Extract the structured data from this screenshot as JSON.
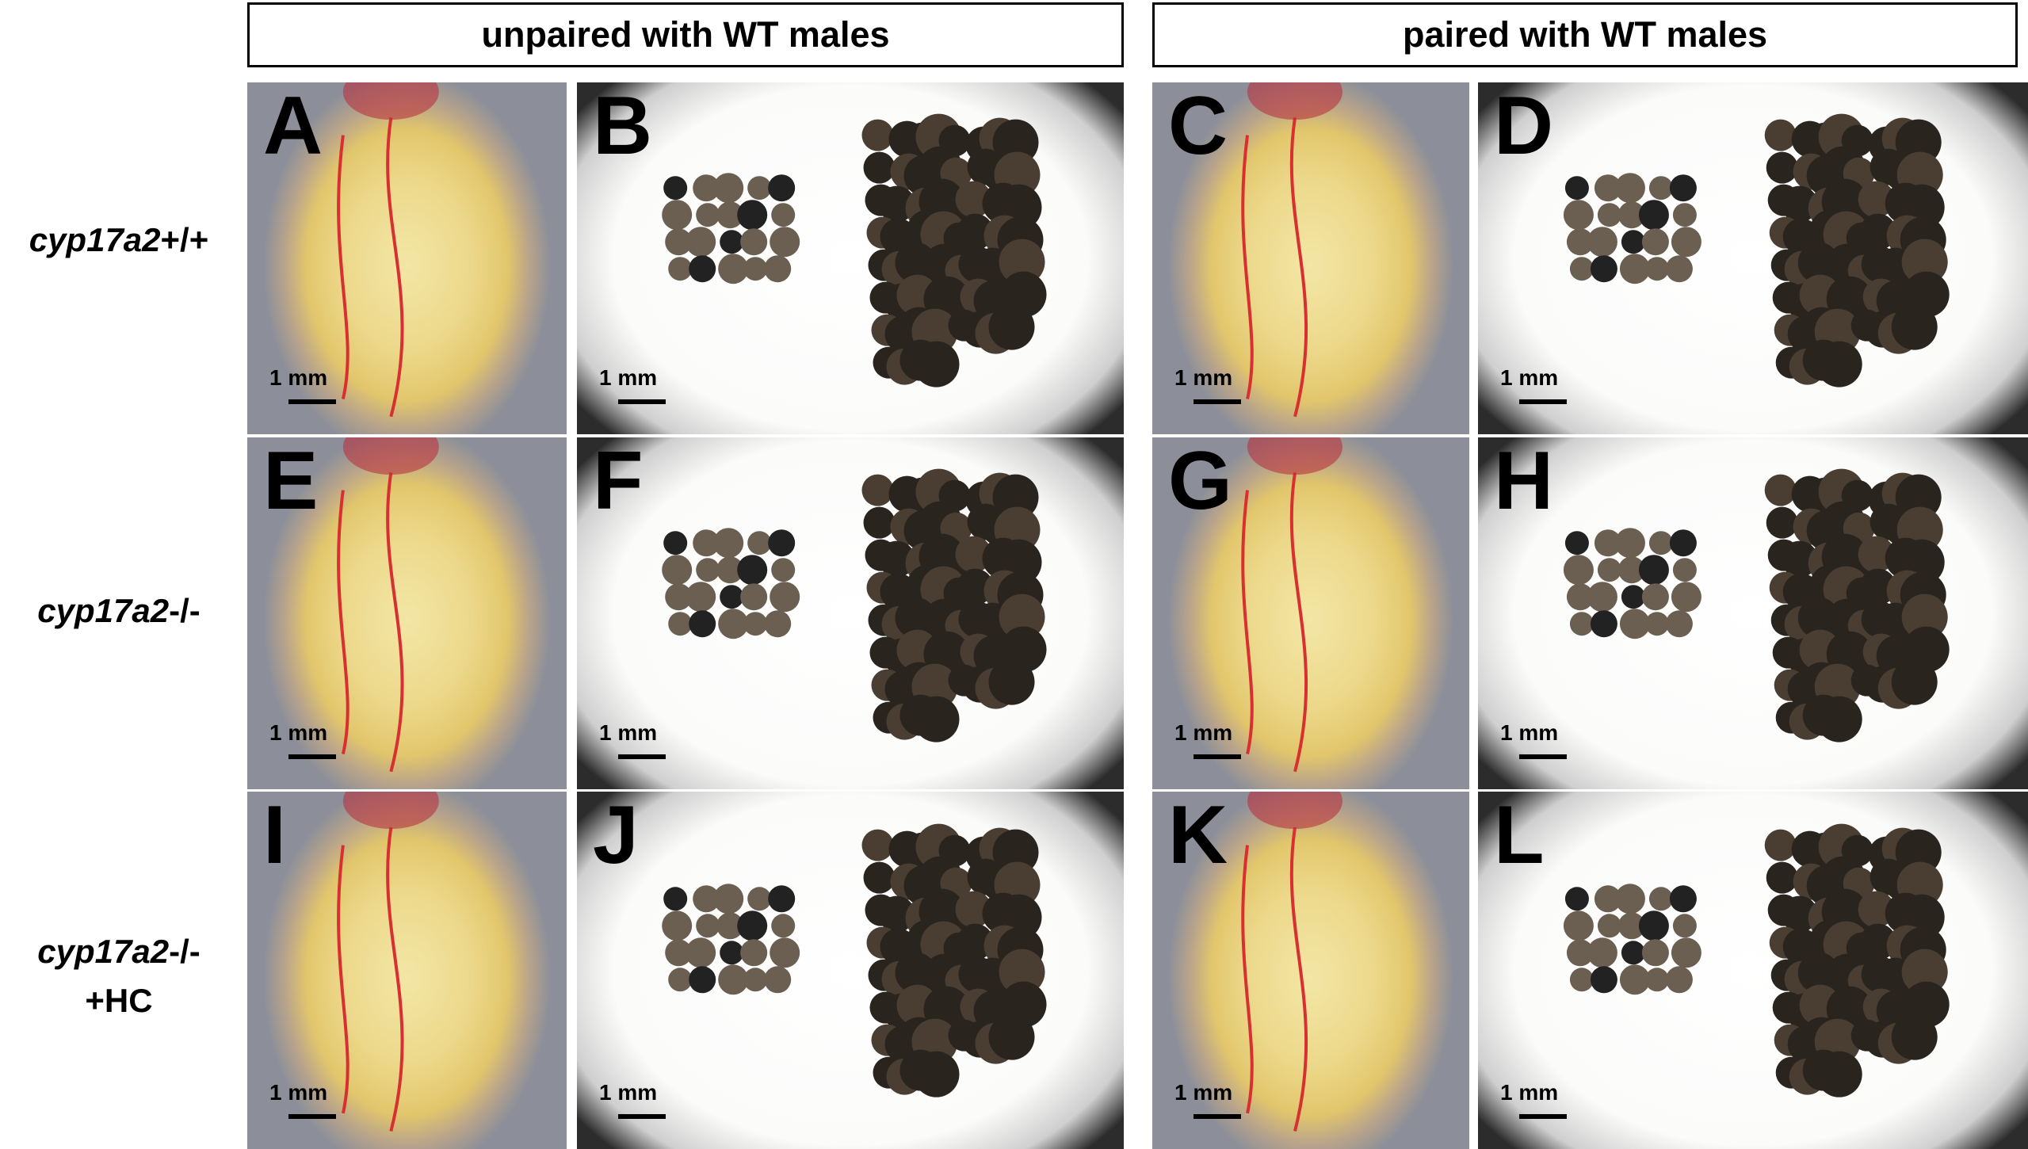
{
  "header": {
    "columns": [
      "unpaired with WT males",
      "paired with WT males"
    ]
  },
  "rows": [
    {
      "gene": "cyp17a2",
      "genotype": "+/+"
    },
    {
      "gene": "cyp17a2",
      "genotype": "-/-"
    },
    {
      "gene": "cyp17a2",
      "genotype": "-/-",
      "treatment": "+HC"
    }
  ],
  "panels": [
    {
      "letter": "A",
      "scale": "1 mm"
    },
    {
      "letter": "B",
      "scale": "1 mm"
    },
    {
      "letter": "C",
      "scale": "1 mm"
    },
    {
      "letter": "D",
      "scale": "1 mm"
    },
    {
      "letter": "E",
      "scale": "1 mm"
    },
    {
      "letter": "F",
      "scale": "1 mm"
    },
    {
      "letter": "G",
      "scale": "1 mm"
    },
    {
      "letter": "H",
      "scale": "1 mm"
    },
    {
      "letter": "I",
      "scale": "1 mm"
    },
    {
      "letter": "J",
      "scale": "1 mm"
    },
    {
      "letter": "K",
      "scale": "1 mm"
    },
    {
      "letter": "L",
      "scale": "1 mm"
    }
  ]
}
